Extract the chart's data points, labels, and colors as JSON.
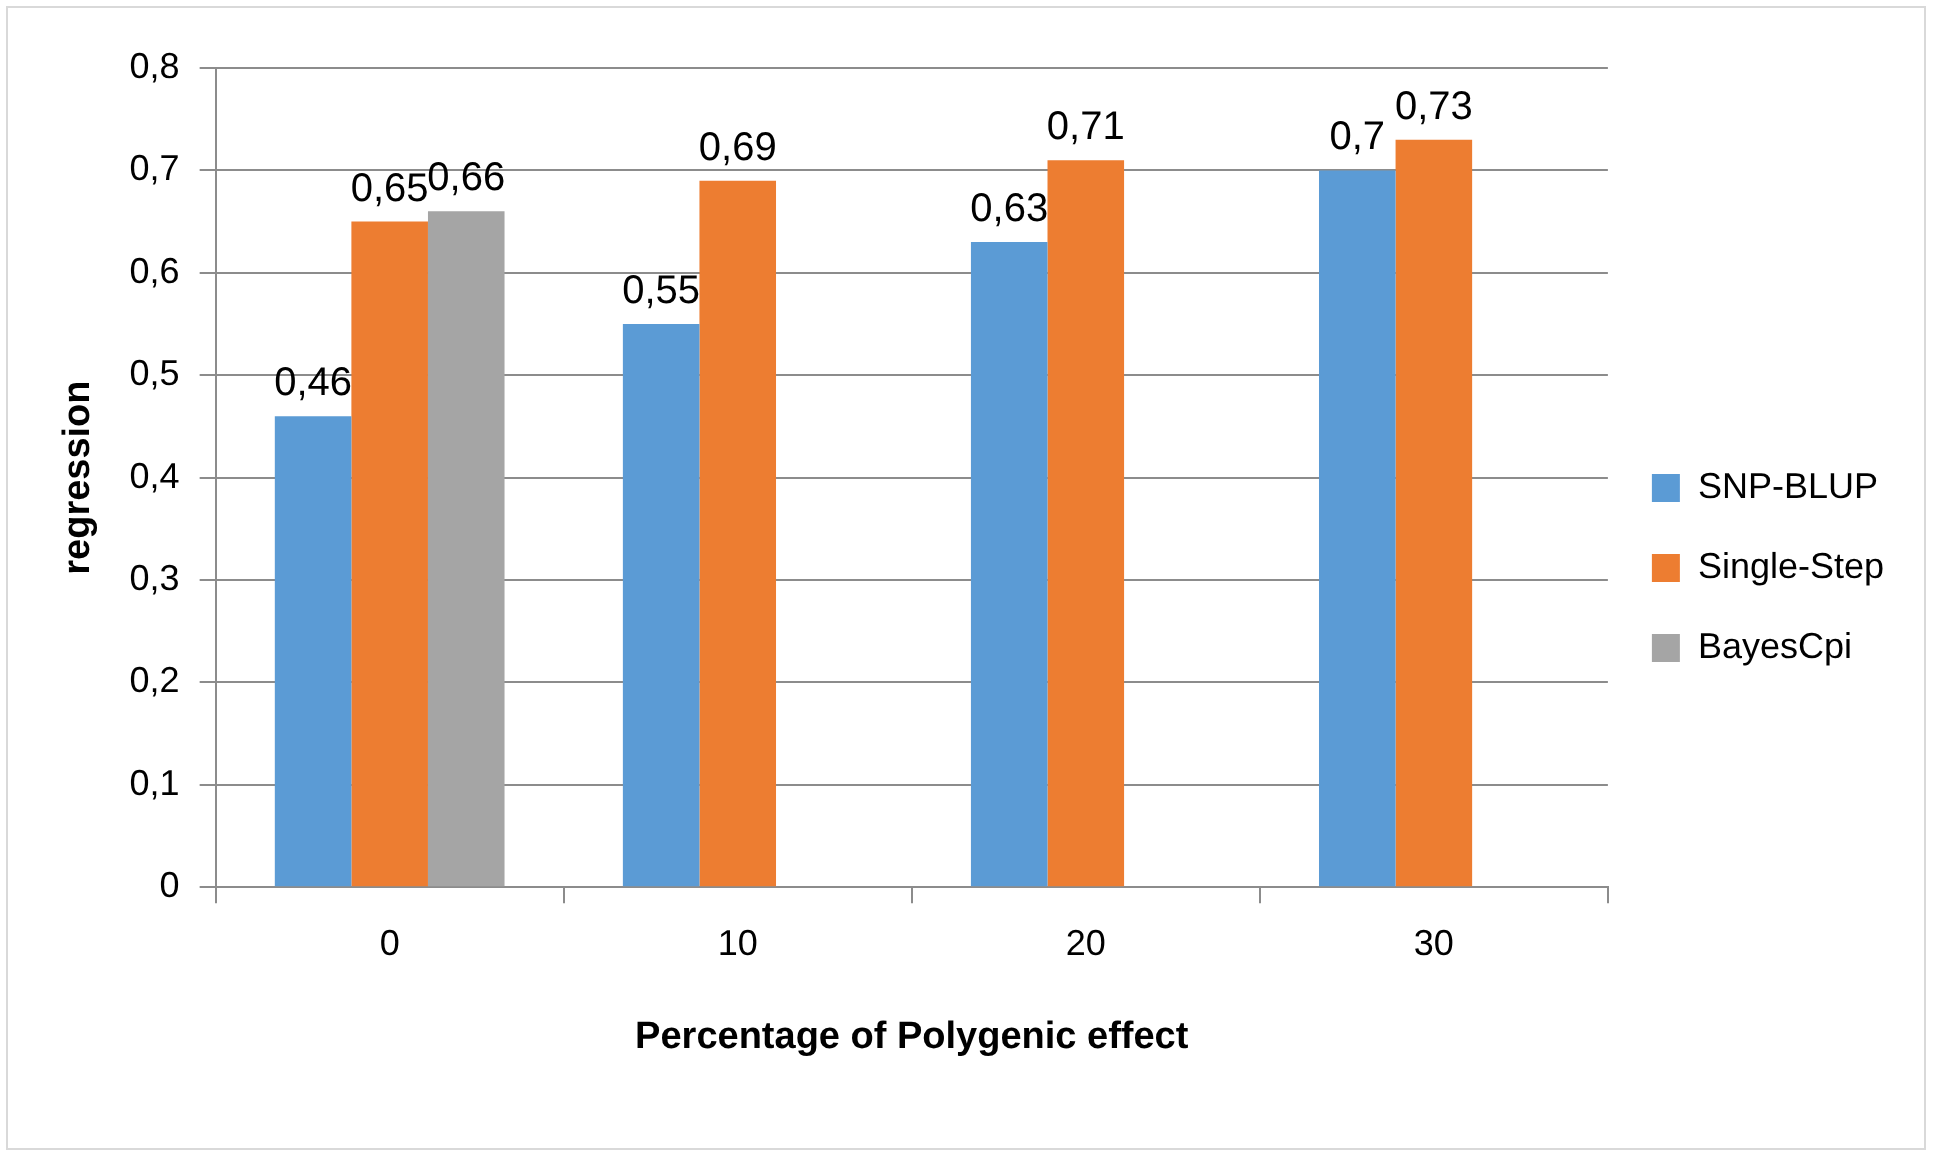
{
  "chart_data": {
    "type": "bar",
    "xlabel": "Percentage of Polygenic effect",
    "ylabel": "regression",
    "categories": [
      "0",
      "10",
      "20",
      "30"
    ],
    "series": [
      {
        "name": "SNP-BLUP",
        "color": "#5b9bd5",
        "values": [
          0.46,
          0.55,
          0.63,
          0.7
        ],
        "value_labels": [
          "0,46",
          "0,55",
          "0,63",
          "0,7"
        ]
      },
      {
        "name": "Single-Step",
        "color": "#ed7d31",
        "values": [
          0.65,
          0.69,
          0.71,
          0.73
        ],
        "value_labels": [
          "0,65",
          "0,69",
          "0,71",
          "0,73"
        ]
      },
      {
        "name": "BayesCpi",
        "color": "#a5a5a5",
        "values": [
          0.66,
          null,
          null,
          null
        ],
        "value_labels": [
          "0,66",
          null,
          null,
          null
        ]
      }
    ],
    "ylim": [
      0,
      0.8
    ],
    "yticks": [
      {
        "value": 0,
        "label": "0"
      },
      {
        "value": 0.1,
        "label": "0,1"
      },
      {
        "value": 0.2,
        "label": "0,2"
      },
      {
        "value": 0.3,
        "label": "0,3"
      },
      {
        "value": 0.4,
        "label": "0,4"
      },
      {
        "value": 0.5,
        "label": "0,5"
      },
      {
        "value": 0.6,
        "label": "0,6"
      },
      {
        "value": 0.7,
        "label": "0,7"
      },
      {
        "value": 0.8,
        "label": "0,8"
      }
    ],
    "grid": "y",
    "legend": "right"
  }
}
